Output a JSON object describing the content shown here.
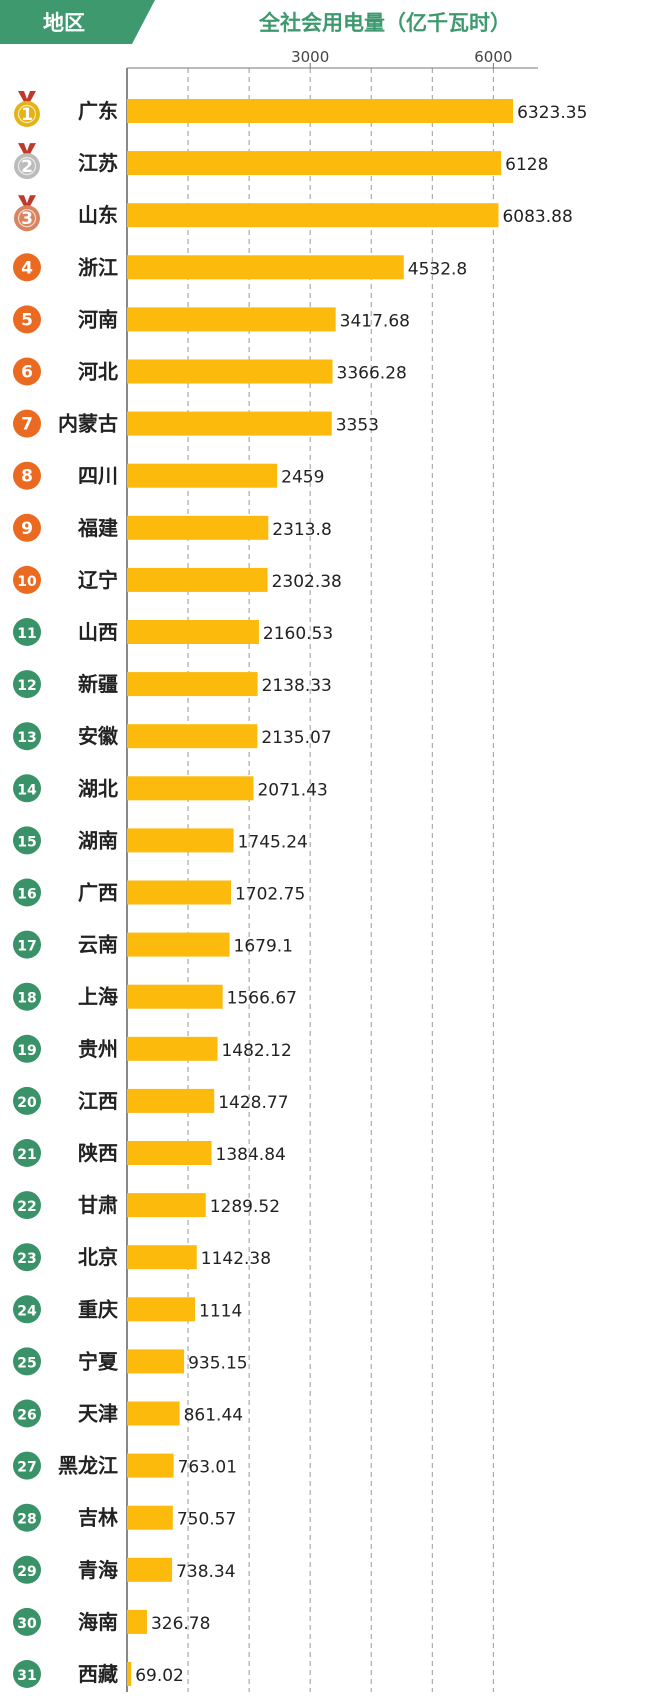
{
  "header": {
    "region_label": "地区",
    "title": "全社会用电量（亿千瓦时）"
  },
  "colors": {
    "bar": "#FBBA0C",
    "header_green": "#3E9A6E",
    "title_green": "#3E9A6E",
    "gold": "#E3B41A",
    "silver": "#BCBCBC",
    "bronze": "#D8845E",
    "orange": "#EB6A22",
    "green": "#3A9268"
  },
  "chart_data": {
    "type": "bar",
    "orientation": "horizontal",
    "title": "全社会用电量（亿千瓦时）",
    "xlabel": "",
    "ylabel": "地区",
    "xlim": [
      0,
      7000
    ],
    "xticks": [
      3000,
      6000
    ],
    "xtick_labels": [
      "3000",
      "6000"
    ],
    "grid": true,
    "categories": [
      "广东",
      "江苏",
      "山东",
      "浙江",
      "河南",
      "河北",
      "内蒙古",
      "四川",
      "福建",
      "辽宁",
      "山西",
      "新疆",
      "安徽",
      "湖北",
      "湖南",
      "广西",
      "云南",
      "上海",
      "贵州",
      "江西",
      "陕西",
      "甘肃",
      "北京",
      "重庆",
      "宁夏",
      "天津",
      "黑龙江",
      "吉林",
      "青海",
      "海南",
      "西藏"
    ],
    "values": [
      6323.35,
      6128,
      6083.88,
      4532.8,
      3417.68,
      3366.28,
      3353,
      2459,
      2313.8,
      2302.38,
      2160.53,
      2138.33,
      2135.07,
      2071.43,
      1745.24,
      1702.75,
      1679.1,
      1566.67,
      1482.12,
      1428.77,
      1384.84,
      1289.52,
      1142.38,
      1114,
      935.15,
      861.44,
      763.01,
      750.57,
      738.34,
      326.78,
      69.02
    ],
    "value_labels": [
      "6323.35",
      "6128",
      "6083.88",
      "4532.8",
      "3417.68",
      "3366.28",
      "3353",
      "2459",
      "2313.8",
      "2302.38",
      "2160.53",
      "2138.33",
      "2135.07",
      "2071.43",
      "1745.24",
      "1702.75",
      "1679.1",
      "1566.67",
      "1482.12",
      "1428.77",
      "1384.84",
      "1289.52",
      "1142.38",
      "1114",
      "935.15",
      "861.44",
      "763.01",
      "750.57",
      "738.34",
      "326.78",
      "69.02"
    ],
    "ranks": [
      "1",
      "2",
      "3",
      "4",
      "5",
      "6",
      "7",
      "8",
      "9",
      "10",
      "11",
      "12",
      "13",
      "14",
      "15",
      "16",
      "17",
      "18",
      "19",
      "20",
      "21",
      "22",
      "23",
      "24",
      "25",
      "26",
      "27",
      "28",
      "29",
      "30",
      "31"
    ]
  }
}
